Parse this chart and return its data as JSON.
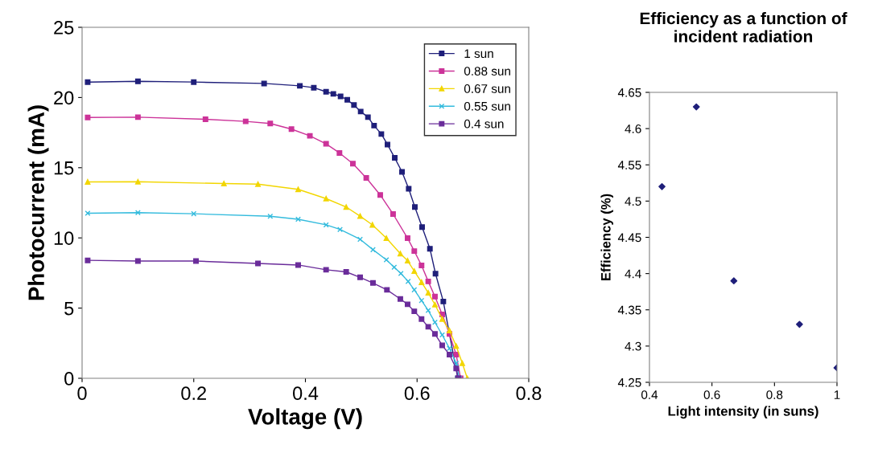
{
  "chart_data": [
    {
      "type": "line",
      "xlabel": "Voltage (V)",
      "ylabel": "Photocurrent (mA)",
      "xlim": [
        0,
        0.8
      ],
      "xticks": [
        0,
        0.2,
        0.4,
        0.6,
        0.8
      ],
      "ylim": [
        0,
        25
      ],
      "yticks": [
        0,
        5,
        10,
        15,
        20,
        25
      ],
      "grid": false,
      "legend": "top right",
      "line_style": "solid",
      "series": [
        {
          "name": "1 sun",
          "color": "#1f1f7a",
          "marker": "square",
          "x": [
            0.01,
            0.1,
            0.2,
            0.326,
            0.39,
            0.415,
            0.437,
            0.45,
            0.463,
            0.475,
            0.487,
            0.499,
            0.512,
            0.523,
            0.536,
            0.547,
            0.56,
            0.573,
            0.585,
            0.596,
            0.609,
            0.623,
            0.633,
            0.647,
            0.673
          ],
          "values": [
            21.1,
            21.15,
            21.1,
            21.0,
            20.83,
            20.7,
            20.41,
            20.26,
            20.08,
            19.84,
            19.46,
            19.0,
            18.6,
            18.0,
            17.4,
            16.65,
            15.7,
            14.7,
            13.5,
            12.2,
            10.77,
            9.23,
            7.45,
            5.47,
            0
          ]
        },
        {
          "name": "0.88 sun",
          "color": "#cc3399",
          "marker": "square",
          "x": [
            0.01,
            0.1,
            0.221,
            0.293,
            0.337,
            0.375,
            0.408,
            0.437,
            0.461,
            0.485,
            0.509,
            0.534,
            0.557,
            0.583,
            0.595,
            0.608,
            0.62,
            0.632,
            0.645,
            0.658,
            0.67,
            0.678
          ],
          "values": [
            18.58,
            18.6,
            18.45,
            18.3,
            18.15,
            17.75,
            17.27,
            16.7,
            16.05,
            15.29,
            14.27,
            13.06,
            11.7,
            9.98,
            9.06,
            8.04,
            6.9,
            5.82,
            4.55,
            3.16,
            1.69,
            0
          ]
        },
        {
          "name": "0.67 sun",
          "color": "#f2d600",
          "marker": "triangle",
          "x": [
            0.01,
            0.1,
            0.254,
            0.315,
            0.387,
            0.437,
            0.473,
            0.498,
            0.52,
            0.545,
            0.57,
            0.583,
            0.595,
            0.608,
            0.62,
            0.632,
            0.645,
            0.658,
            0.67,
            0.681,
            0.69
          ],
          "values": [
            13.99,
            14.0,
            13.87,
            13.83,
            13.46,
            12.8,
            12.2,
            11.55,
            10.93,
            9.98,
            8.88,
            8.38,
            7.63,
            6.84,
            6.09,
            5.25,
            4.22,
            3.4,
            2.3,
            1.07,
            0
          ]
        },
        {
          "name": "0.55 sun",
          "color": "#33bbdd",
          "marker": "cross",
          "x": [
            0.01,
            0.1,
            0.2,
            0.337,
            0.387,
            0.437,
            0.462,
            0.498,
            0.521,
            0.545,
            0.559,
            0.571,
            0.584,
            0.595,
            0.608,
            0.62,
            0.632,
            0.645,
            0.658,
            0.67,
            0.676
          ],
          "values": [
            11.76,
            11.8,
            11.72,
            11.54,
            11.33,
            10.93,
            10.6,
            9.9,
            9.16,
            8.44,
            7.91,
            7.47,
            6.9,
            6.3,
            5.54,
            4.83,
            3.99,
            3.09,
            2.13,
            1.07,
            0
          ]
        },
        {
          "name": "0.4 sun",
          "color": "#6a2c9a",
          "marker": "square",
          "x": [
            0.01,
            0.1,
            0.204,
            0.315,
            0.387,
            0.437,
            0.473,
            0.498,
            0.521,
            0.546,
            0.57,
            0.583,
            0.595,
            0.608,
            0.62,
            0.632,
            0.645,
            0.658,
            0.67,
            0.674
          ],
          "values": [
            8.4,
            8.35,
            8.35,
            8.18,
            8.07,
            7.73,
            7.58,
            7.19,
            6.79,
            6.3,
            5.65,
            5.27,
            4.77,
            4.22,
            3.67,
            3.16,
            2.35,
            1.69,
            0.7,
            0
          ]
        }
      ]
    },
    {
      "type": "scatter",
      "title": "Efficiency as a function of\nincident radiation",
      "xlabel": "Light intensity (in suns)",
      "ylabel": "Efficiency (%)",
      "xlim": [
        0.4,
        1
      ],
      "xticks": [
        0.4,
        0.6,
        0.8,
        1
      ],
      "ylim": [
        4.25,
        4.65
      ],
      "yticks": [
        4.25,
        4.3,
        4.35,
        4.4,
        4.45,
        4.5,
        4.55,
        4.6,
        4.65
      ],
      "grid": false,
      "marker": "diamond",
      "series": [
        {
          "color": "#1f1f7a",
          "x": [
            0.44,
            0.55,
            0.67,
            0.88,
            1
          ],
          "values": [
            4.52,
            4.63,
            4.39,
            4.33,
            4.27
          ]
        }
      ]
    }
  ]
}
